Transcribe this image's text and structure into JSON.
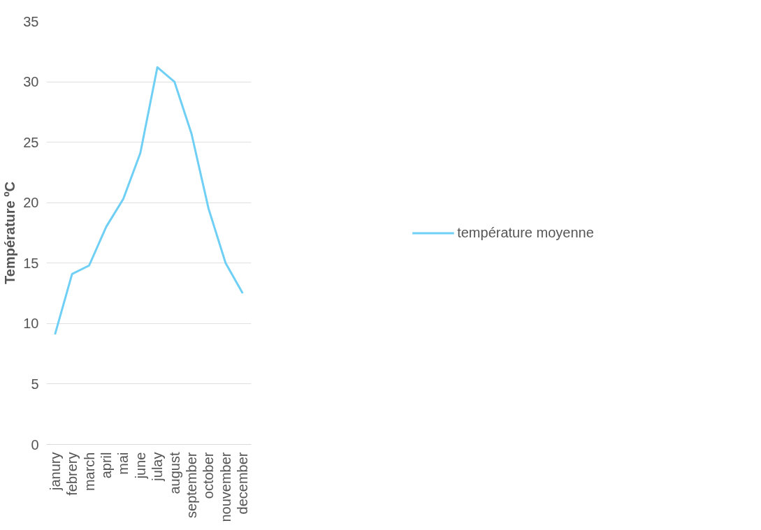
{
  "chart_data": {
    "type": "line",
    "ylabel": "Température ºC",
    "categories": [
      "janury",
      "febrery",
      "march",
      "april",
      "mai",
      "june",
      "julay",
      "august",
      "september",
      "october",
      "nouvember",
      "december"
    ],
    "series": [
      {
        "name": "température moyenne",
        "color": "#6fcff5",
        "values": [
          9.1,
          14.1,
          14.8,
          18.0,
          20.3,
          24.1,
          31.2,
          30.0,
          25.7,
          19.5,
          15.0,
          12.5
        ]
      }
    ],
    "ylim": [
      0,
      35
    ],
    "yticks": [
      0,
      5,
      10,
      15,
      20,
      25,
      30,
      35
    ],
    "grid": "y",
    "legend": "right",
    "marker": "none",
    "line_style": "solid"
  }
}
